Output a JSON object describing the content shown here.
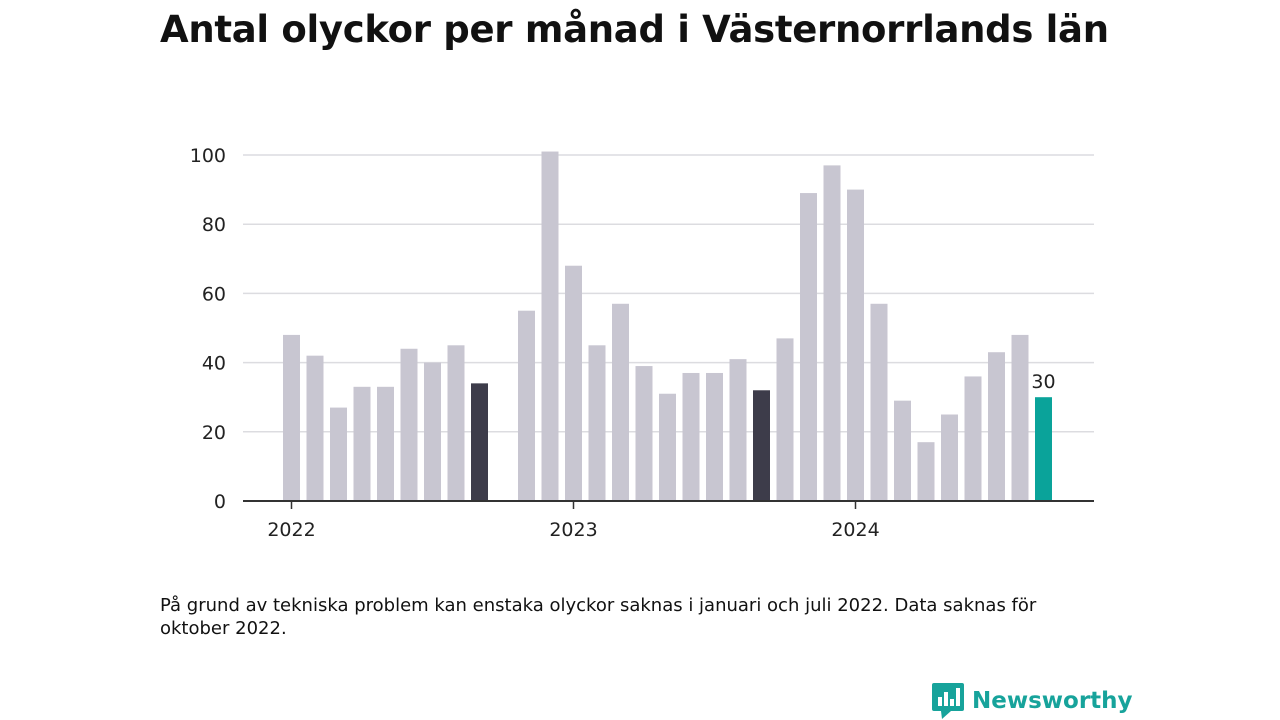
{
  "title": "Antal olyckor per månad i Västernorrlands län",
  "note": "På grund av tekniska problem kan enstaka olyckor saknas i januari och juli 2022. Data saknas för oktober 2022.",
  "brand": {
    "name": "Newsworthy",
    "icon": "newsworthy-logo-icon"
  },
  "colors": {
    "bar": "#c8c6d1",
    "highlight": "#3d3c4a",
    "current": "#0aa39a",
    "grid": "#dcdce0",
    "axis": "#333333"
  },
  "chart_data": {
    "type": "bar",
    "title": "Antal olyckor per månad i Västernorrlands län",
    "xlabel": "",
    "ylabel": "",
    "ylim": [
      0,
      105
    ],
    "yticks": [
      0,
      20,
      40,
      60,
      80,
      100
    ],
    "xticks": [
      {
        "label": "2022",
        "at": "2022-01"
      },
      {
        "label": "2023",
        "at": "2023-01"
      },
      {
        "label": "2024",
        "at": "2024-01"
      }
    ],
    "grid": true,
    "legend": "none",
    "x": [
      "2022-01",
      "2022-02",
      "2022-03",
      "2022-04",
      "2022-05",
      "2022-06",
      "2022-07",
      "2022-08",
      "2022-09",
      "2022-10",
      "2022-11",
      "2022-12",
      "2023-01",
      "2023-02",
      "2023-03",
      "2023-04",
      "2023-05",
      "2023-06",
      "2023-07",
      "2023-08",
      "2023-09",
      "2023-10",
      "2023-11",
      "2023-12",
      "2024-01",
      "2024-02",
      "2024-03",
      "2024-04",
      "2024-05",
      "2024-06",
      "2024-07",
      "2024-08",
      "2024-09"
    ],
    "values": [
      48,
      42,
      27,
      33,
      33,
      44,
      40,
      45,
      34,
      null,
      55,
      101,
      68,
      45,
      57,
      39,
      31,
      37,
      37,
      41,
      32,
      47,
      89,
      97,
      90,
      57,
      29,
      17,
      25,
      36,
      43,
      48,
      30
    ],
    "highlighted": [
      "2022-09",
      "2023-09"
    ],
    "current": "2024-09",
    "data_labels": [
      {
        "x": "2024-09",
        "text": "30"
      }
    ]
  }
}
